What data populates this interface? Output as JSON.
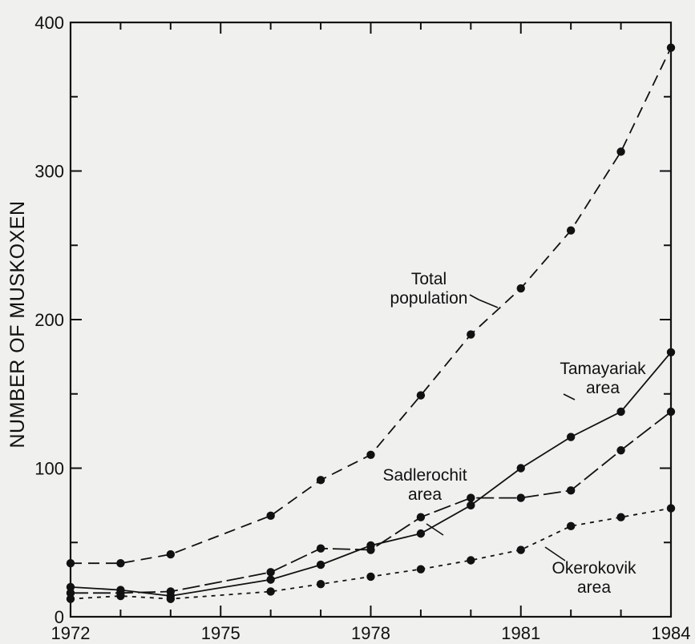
{
  "chart_data": {
    "type": "line",
    "title": "",
    "xlabel": "",
    "ylabel": "NUMBER OF MUSKOXEN",
    "x_ticks": [
      1972,
      1975,
      1978,
      1981,
      1984
    ],
    "y_ticks": [
      0,
      100,
      200,
      300,
      400
    ],
    "xlim": [
      1972,
      1984
    ],
    "ylim": [
      0,
      400
    ],
    "grid": false,
    "series": [
      {
        "name": "Total population",
        "style": "dashed-long",
        "x": [
          1972,
          1973,
          1974,
          1976,
          1977,
          1978,
          1979,
          1980,
          1981,
          1982,
          1983,
          1984
        ],
        "y": [
          36,
          36,
          42,
          68,
          92,
          109,
          149,
          190,
          221,
          260,
          313,
          383
        ]
      },
      {
        "name": "Tamayariak area",
        "style": "solid",
        "x": [
          1972,
          1973,
          1974,
          1976,
          1977,
          1978,
          1979,
          1980,
          1981,
          1982,
          1983,
          1984
        ],
        "y": [
          20,
          18,
          14,
          25,
          35,
          48,
          56,
          75,
          100,
          121,
          138,
          178
        ]
      },
      {
        "name": "Sadlerochit area",
        "style": "dash-solid",
        "x": [
          1972,
          1973,
          1974,
          1976,
          1977,
          1978,
          1979,
          1980,
          1981,
          1982,
          1983,
          1984
        ],
        "y": [
          16,
          16,
          17,
          30,
          46,
          45,
          67,
          80,
          80,
          85,
          112,
          138
        ]
      },
      {
        "name": "Okerokovik area",
        "style": "dashed-short",
        "x": [
          1972,
          1973,
          1974,
          1976,
          1977,
          1978,
          1979,
          1980,
          1981,
          1982,
          1983,
          1984
        ],
        "y": [
          12,
          14,
          12,
          17,
          22,
          27,
          32,
          38,
          45,
          61,
          67,
          73
        ]
      }
    ],
    "annotations": [
      {
        "series": "Total population",
        "lines": [
          "Total",
          "population"
        ]
      },
      {
        "series": "Tamayariak area",
        "lines": [
          "Tamayariak",
          "area"
        ]
      },
      {
        "series": "Sadlerochit area",
        "lines": [
          "Sadlerochit",
          "area"
        ]
      },
      {
        "series": "Okerokovik area",
        "lines": [
          "Okerokovik",
          "area"
        ]
      }
    ]
  }
}
